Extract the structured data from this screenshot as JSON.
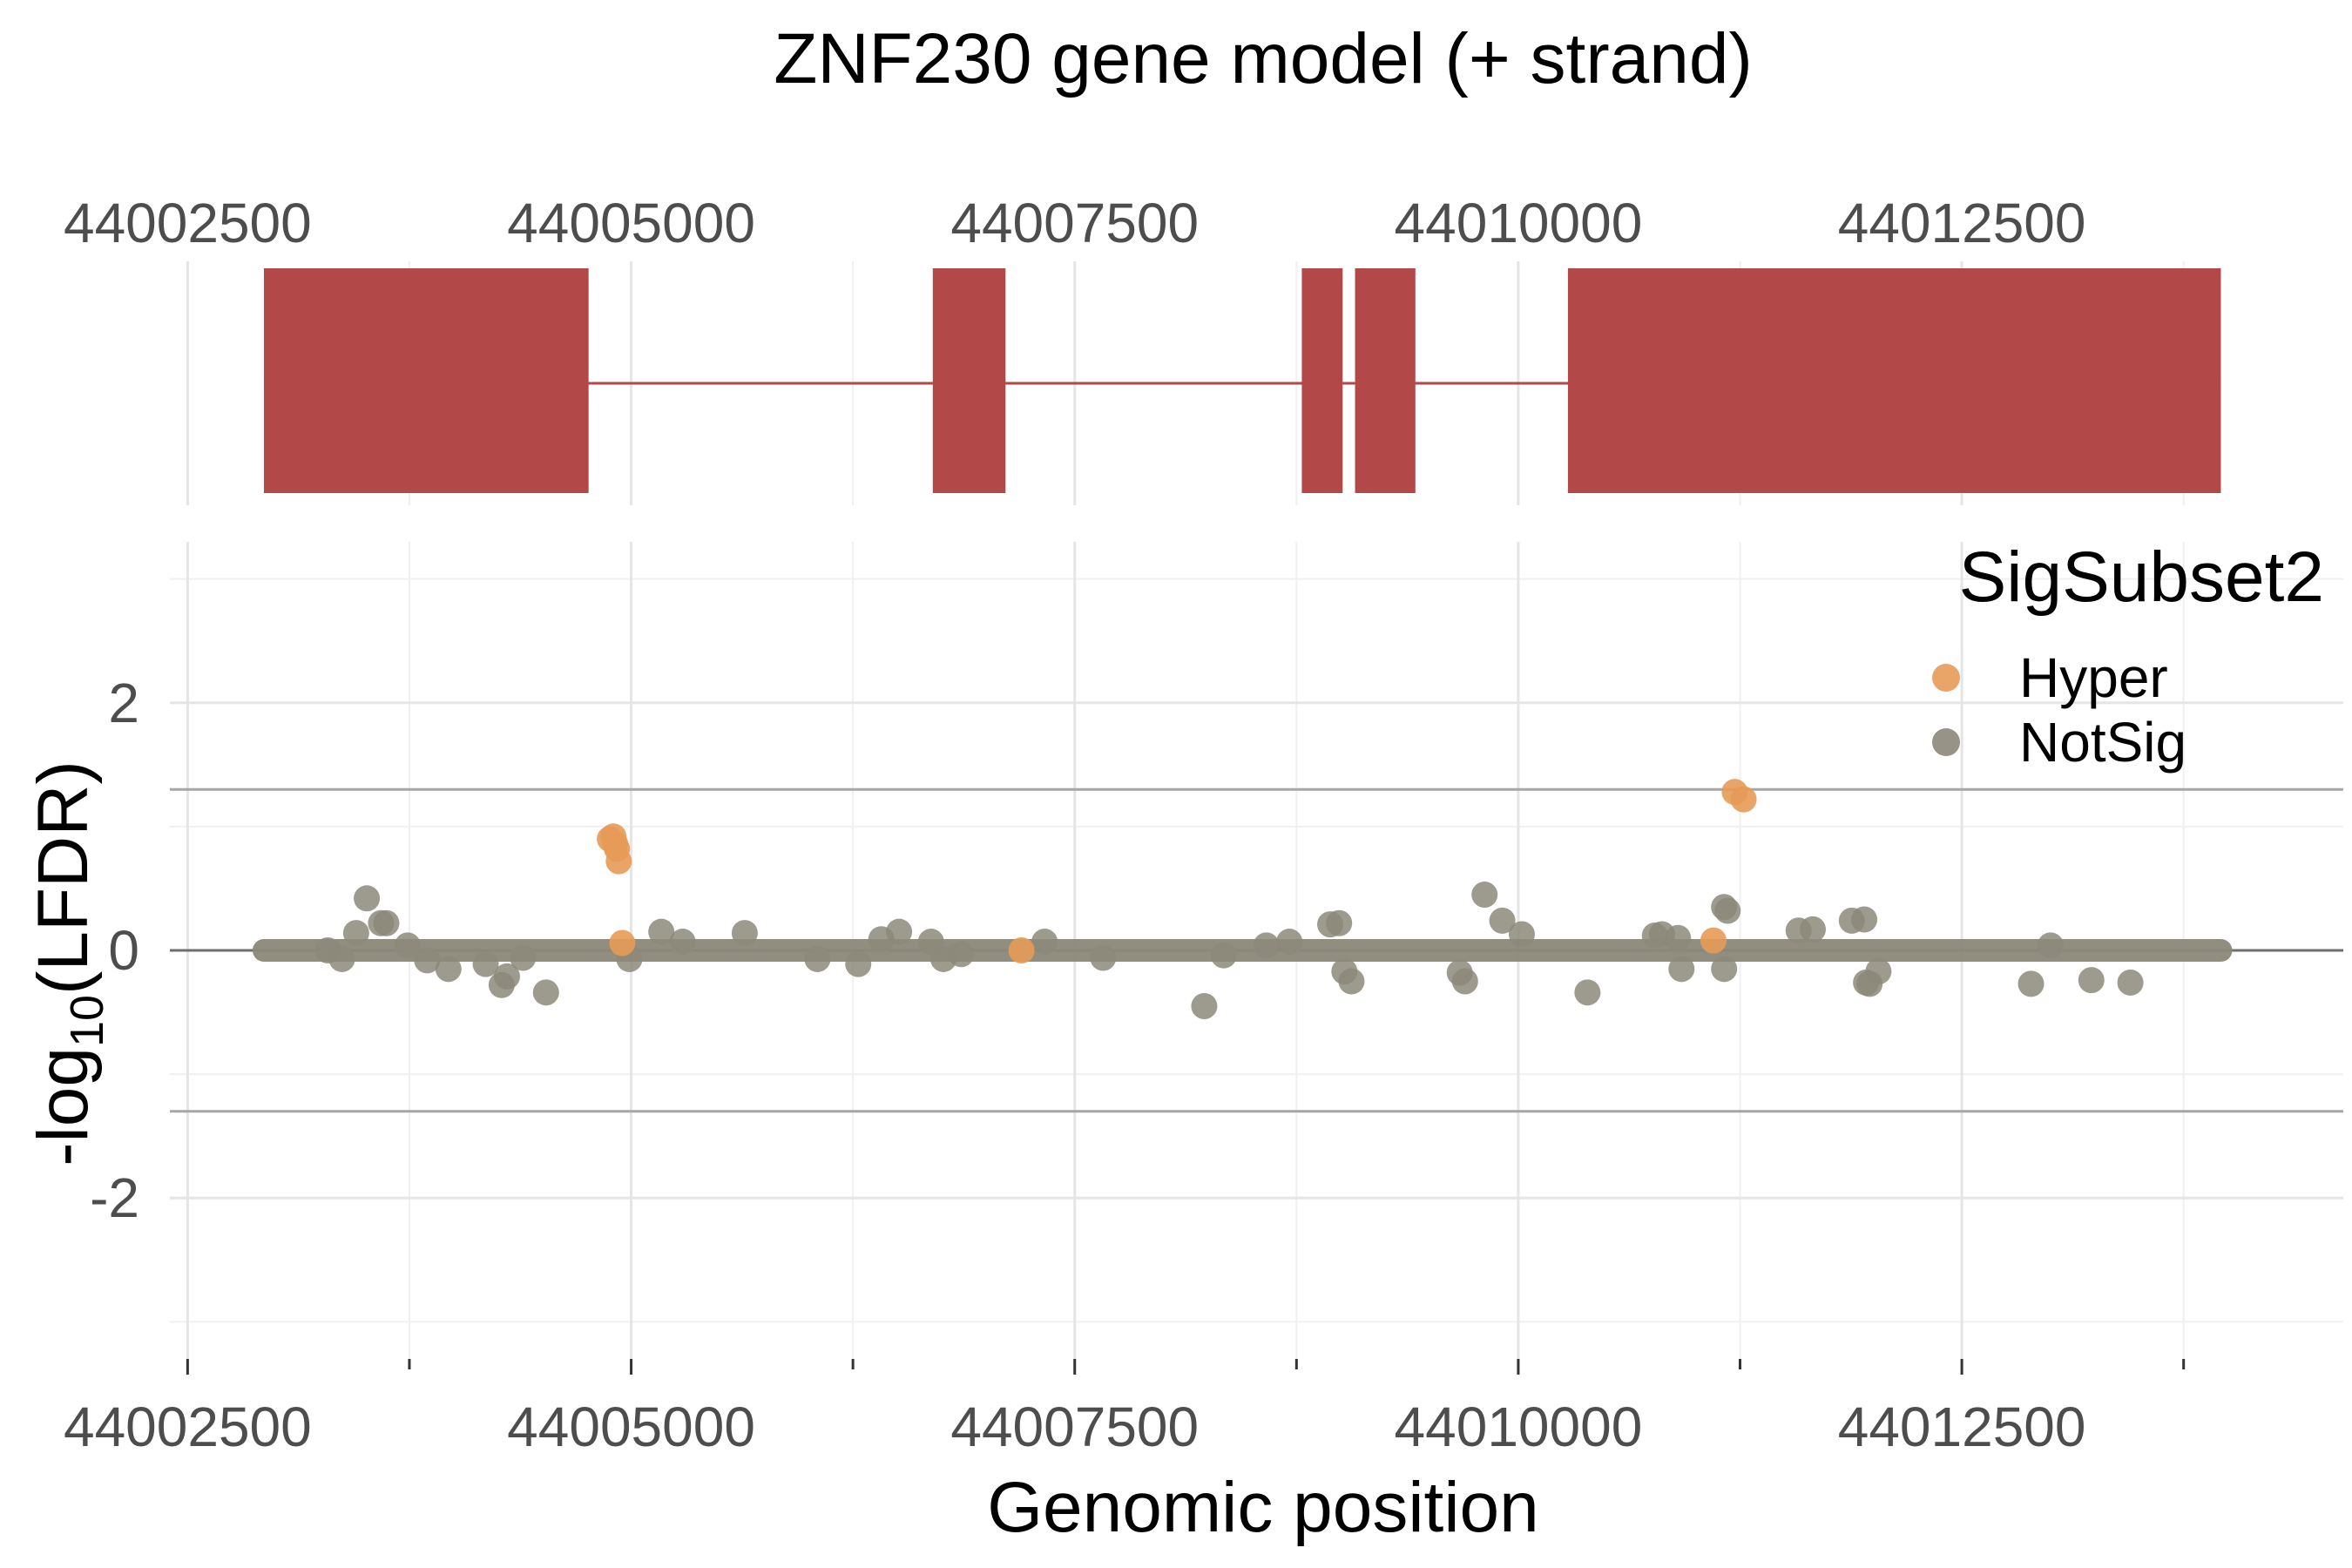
{
  "chart_data": {
    "type": "scatter",
    "title": "ZNF230 gene model (+ strand)",
    "gene_model": {
      "strand": "+",
      "x_ticks": [
        44002500,
        44005000,
        44007500,
        44010000,
        44012500
      ],
      "exons": [
        [
          44002930,
          44004760
        ],
        [
          44006700,
          44007110
        ],
        [
          44008780,
          44009010
        ],
        [
          44009080,
          44009420
        ],
        [
          44010280,
          44013960
        ]
      ],
      "intron_line": [
        44002930,
        44013960
      ],
      "fill_color": "#b34849"
    },
    "scatter": {
      "xlabel": "Genomic position",
      "ylabel_prefix": "-log",
      "ylabel_sub": "10",
      "ylabel_suffix": "(LFDR)",
      "xlim": [
        44002400,
        44014650
      ],
      "ylim": [
        -3.3,
        3.3
      ],
      "x_ticks": [
        44002500,
        44005000,
        44007500,
        44010000,
        44012500
      ],
      "y_ticks": [
        2,
        0,
        -2
      ],
      "y_tick_labels": [
        "2",
        "0",
        "-2"
      ],
      "hlines": [
        1.3,
        0,
        -1.3
      ],
      "grid": true,
      "baseline_range": [
        44002930,
        44013960
      ],
      "legend": {
        "title": "SigSubset2",
        "position": "top-right",
        "entries": [
          {
            "label": "Hyper",
            "color": "#e69b57"
          },
          {
            "label": "NotSig",
            "color": "#8c887a"
          }
        ]
      },
      "series": [
        {
          "name": "Hyper",
          "color": "#e69b57",
          "points": [
            [
              44004880,
              0.9
            ],
            [
              44004900,
              0.92
            ],
            [
              44004910,
              0.86
            ],
            [
              44004920,
              0.82
            ],
            [
              44004930,
              0.72
            ],
            [
              44004950,
              0.06
            ],
            [
              44007200,
              0.0
            ],
            [
              44011100,
              0.08
            ],
            [
              44011220,
              1.28
            ],
            [
              44011270,
              1.22
            ]
          ]
        },
        {
          "name": "NotSig",
          "color": "#8c887a",
          "points": [
            [
              44003290,
              0.0
            ],
            [
              44003370,
              -0.07
            ],
            [
              44003450,
              0.14
            ],
            [
              44003510,
              0.42
            ],
            [
              44003590,
              0.22
            ],
            [
              44003620,
              0.22
            ],
            [
              44003740,
              0.04
            ],
            [
              44003850,
              -0.08
            ],
            [
              44003970,
              -0.15
            ],
            [
              44004180,
              -0.11
            ],
            [
              44004270,
              -0.28
            ],
            [
              44004300,
              -0.21
            ],
            [
              44004390,
              -0.06
            ],
            [
              44004520,
              -0.34
            ],
            [
              44004990,
              -0.07
            ],
            [
              44005170,
              0.15
            ],
            [
              44005290,
              0.07
            ],
            [
              44005640,
              0.14
            ],
            [
              44006050,
              -0.07
            ],
            [
              44006280,
              -0.11
            ],
            [
              44006410,
              0.09
            ],
            [
              44006510,
              0.15
            ],
            [
              44006690,
              0.07
            ],
            [
              44006760,
              -0.07
            ],
            [
              44006860,
              -0.03
            ],
            [
              44007330,
              0.07
            ],
            [
              44007660,
              -0.06
            ],
            [
              44008230,
              -0.45
            ],
            [
              44008340,
              -0.04
            ],
            [
              44008580,
              0.04
            ],
            [
              44008710,
              0.07
            ],
            [
              44008940,
              0.21
            ],
            [
              44008990,
              0.22
            ],
            [
              44009020,
              -0.17
            ],
            [
              44009060,
              -0.25
            ],
            [
              44009670,
              -0.18
            ],
            [
              44009700,
              -0.25
            ],
            [
              44009810,
              0.45
            ],
            [
              44009910,
              0.24
            ],
            [
              44010020,
              0.13
            ],
            [
              44010390,
              -0.34
            ],
            [
              44010770,
              0.12
            ],
            [
              44010810,
              0.13
            ],
            [
              44010900,
              0.1
            ],
            [
              44010920,
              -0.15
            ],
            [
              44011160,
              0.35
            ],
            [
              44011180,
              0.32
            ],
            [
              44011160,
              -0.15
            ],
            [
              44011580,
              0.16
            ],
            [
              44011660,
              0.17
            ],
            [
              44011880,
              0.24
            ],
            [
              44011950,
              0.25
            ],
            [
              44011960,
              -0.26
            ],
            [
              44011980,
              -0.27
            ],
            [
              44012030,
              -0.17
            ],
            [
              44012890,
              -0.27
            ],
            [
              44013000,
              0.04
            ],
            [
              44013230,
              -0.24
            ],
            [
              44013450,
              -0.26
            ]
          ]
        }
      ]
    }
  }
}
